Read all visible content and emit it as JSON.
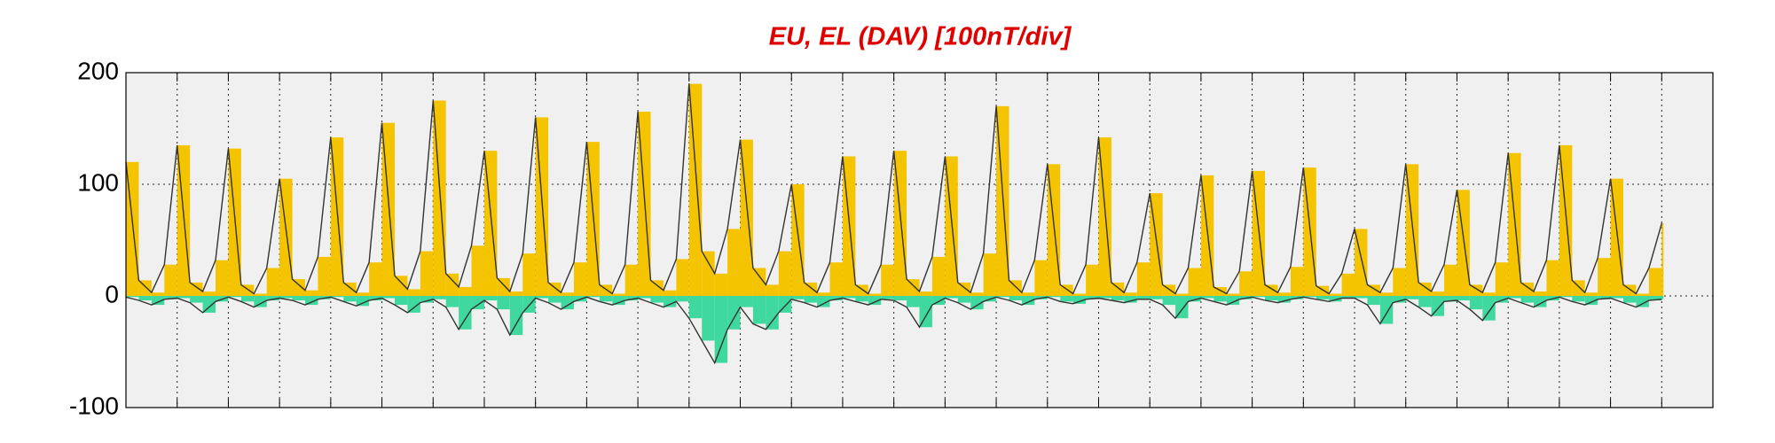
{
  "chart_data": {
    "type": "bar",
    "title": "EU, EL (DAV)  [100nT/div]",
    "x": [
      0,
      0.25,
      0.5,
      0.75,
      1,
      1.25,
      1.5,
      1.75,
      2,
      2.25,
      2.5,
      2.75,
      3,
      3.25,
      3.5,
      3.75,
      4,
      4.25,
      4.5,
      4.75,
      5,
      5.25,
      5.5,
      5.75,
      6,
      6.25,
      6.5,
      6.75,
      7,
      7.25,
      7.5,
      7.75,
      8,
      8.25,
      8.5,
      8.75,
      9,
      9.25,
      9.5,
      9.75,
      10,
      10.25,
      10.5,
      10.75,
      11,
      11.25,
      11.5,
      11.75,
      12,
      12.25,
      12.5,
      12.75,
      13,
      13.25,
      13.5,
      13.75,
      14,
      14.25,
      14.5,
      14.75,
      15,
      15.25,
      15.5,
      15.75,
      16,
      16.25,
      16.5,
      16.75,
      17,
      17.25,
      17.5,
      17.75,
      18,
      18.25,
      18.5,
      18.75,
      19,
      19.25,
      19.5,
      19.75,
      20,
      20.25,
      20.5,
      20.75,
      21,
      21.25,
      21.5,
      21.75,
      22,
      22.25,
      22.5,
      22.75,
      23,
      23.25,
      23.5,
      23.75,
      24,
      24.25,
      24.5,
      24.75,
      25,
      25.25,
      25.5,
      25.75,
      26,
      26.25,
      26.5,
      26.75,
      27,
      27.25,
      27.5,
      27.75,
      28,
      28.25,
      28.5,
      28.75,
      29,
      29.25,
      29.5,
      29.75,
      30
    ],
    "series": [
      {
        "name": "EU",
        "color": "#f5c400",
        "line_color": "#333333",
        "values": [
          120,
          14,
          3,
          28,
          135,
          12,
          4,
          32,
          132,
          10,
          2,
          25,
          105,
          15,
          5,
          35,
          142,
          12,
          3,
          30,
          155,
          18,
          6,
          40,
          175,
          20,
          8,
          45,
          130,
          16,
          4,
          38,
          160,
          12,
          3,
          30,
          138,
          10,
          2,
          28,
          165,
          14,
          5,
          33,
          190,
          40,
          20,
          60,
          140,
          25,
          10,
          40,
          100,
          12,
          3,
          30,
          125,
          10,
          2,
          28,
          130,
          15,
          4,
          35,
          125,
          12,
          3,
          38,
          170,
          14,
          3,
          32,
          118,
          10,
          2,
          28,
          142,
          12,
          3,
          30,
          92,
          10,
          2,
          25,
          108,
          8,
          2,
          22,
          112,
          10,
          3,
          26,
          115,
          9,
          2,
          20,
          60,
          10,
          3,
          25,
          118,
          12,
          4,
          28,
          95,
          10,
          3,
          30,
          128,
          12,
          4,
          32,
          135,
          14,
          3,
          34,
          105,
          10,
          2,
          25,
          65
        ]
      },
      {
        "name": "EL",
        "color": "#3fd9a0",
        "line_color": "#333333",
        "values": [
          -1,
          -4,
          -8,
          -3,
          -2,
          -6,
          -15,
          -5,
          -1,
          -5,
          -10,
          -4,
          -2,
          -4,
          -8,
          -3,
          -1,
          -5,
          -9,
          -4,
          -2,
          -8,
          -15,
          -6,
          -3,
          -10,
          -30,
          -12,
          -4,
          -12,
          -35,
          -15,
          -2,
          -6,
          -12,
          -5,
          -1,
          -5,
          -8,
          -4,
          -2,
          -6,
          -10,
          -5,
          -20,
          -40,
          -60,
          -30,
          -10,
          -25,
          -30,
          -15,
          -3,
          -6,
          -10,
          -4,
          -2,
          -5,
          -8,
          -3,
          -4,
          -10,
          -28,
          -8,
          -2,
          -6,
          -12,
          -5,
          -1,
          -4,
          -8,
          -3,
          -1,
          -5,
          -7,
          -3,
          -2,
          -4,
          -6,
          -3,
          -3,
          -8,
          -20,
          -5,
          -2,
          -5,
          -8,
          -3,
          -1,
          -4,
          -6,
          -3,
          -1,
          -3,
          -5,
          -2,
          -2,
          -8,
          -25,
          -6,
          -3,
          -10,
          -18,
          -5,
          -4,
          -12,
          -22,
          -6,
          -2,
          -6,
          -10,
          -4,
          -1,
          -5,
          -8,
          -3,
          -2,
          -6,
          -10,
          -4,
          -3
        ]
      }
    ],
    "xlim": [
      0,
      31
    ],
    "xticks": [
      1,
      2,
      3,
      4,
      5,
      6,
      7,
      8,
      9,
      10,
      11,
      12,
      13,
      14,
      15,
      16,
      17,
      18,
      19,
      20,
      21,
      22,
      23,
      24,
      25,
      26,
      27,
      28,
      29,
      30
    ],
    "ylim": [
      -100,
      200
    ],
    "yticks": [
      -100,
      0,
      100,
      200
    ],
    "grid": true,
    "background": "#f0f0f0"
  }
}
